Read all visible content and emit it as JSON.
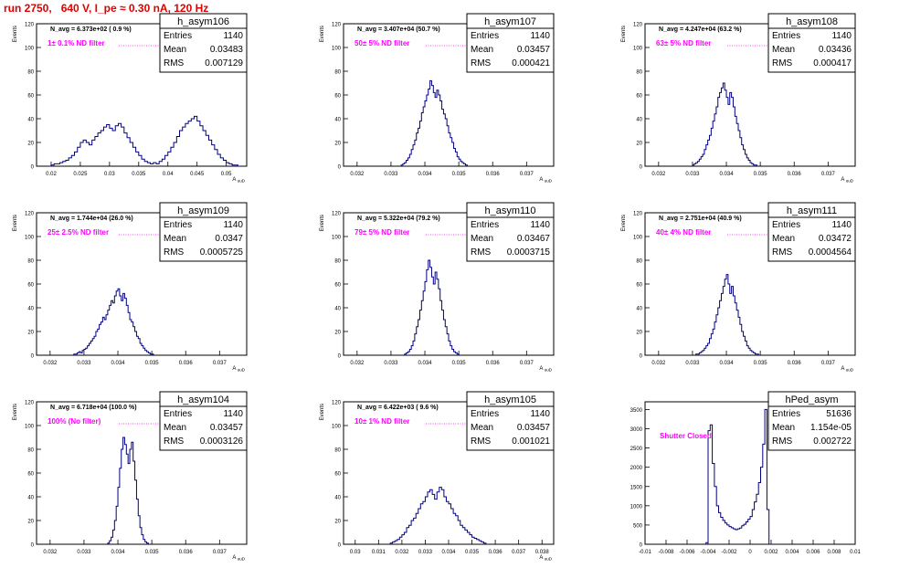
{
  "title": "run 2750,   640 V, I_pe ≈ 0.30 nA, 120 Hz",
  "colors": {
    "title": "#e00000",
    "hist": "#000080",
    "annot": "#ff00ff",
    "frame": "#000000"
  },
  "chart_data": [
    {
      "type": "histogram",
      "name": "h_asym106",
      "ylabel": "Events",
      "xlabel": "A_uuD",
      "navg": "N_avg = 6.373e+02 ( 0.9 %)",
      "filter": "1± 0.1% ND filter",
      "stats": [
        [
          "Entries",
          "1140"
        ],
        [
          "Mean",
          "0.03483"
        ],
        [
          "RMS",
          "0.007129"
        ]
      ],
      "xlim": [
        0.0175,
        0.0535
      ],
      "ylim": [
        0,
        120
      ],
      "yticks": [
        0,
        20,
        40,
        60,
        80,
        100,
        120
      ],
      "xticks": [
        0.02,
        0.025,
        0.03,
        0.035,
        0.04,
        0.045,
        0.05
      ],
      "xticklabels": [
        "0.02",
        "0.025",
        "0.03",
        "0.035",
        "0.04",
        "0.045",
        "0.05"
      ],
      "bins": {
        "x0": 0.0195,
        "w": 0.0005,
        "counts": [
          0,
          1,
          2,
          2,
          3,
          4,
          5,
          7,
          9,
          12,
          16,
          20,
          22,
          20,
          18,
          22,
          25,
          28,
          30,
          33,
          35,
          32,
          30,
          34,
          36,
          33,
          28,
          24,
          20,
          16,
          12,
          9,
          6,
          4,
          3,
          2,
          3,
          2,
          4,
          6,
          9,
          12,
          16,
          20,
          25,
          30,
          33,
          36,
          38,
          40,
          42,
          38,
          34,
          30,
          26,
          22,
          18,
          14,
          10,
          7,
          5,
          3,
          2,
          1,
          1,
          0
        ]
      }
    },
    {
      "type": "histogram",
      "name": "h_asym107",
      "ylabel": "Events",
      "xlabel": "A_uuD",
      "navg": "N_avg = 3.407e+04 (50.7 %)",
      "filter": "50± 5% ND filter",
      "stats": [
        [
          "Entries",
          "1140"
        ],
        [
          "Mean",
          "0.03457"
        ],
        [
          "RMS",
          "0.000421"
        ]
      ],
      "xlim": [
        0.0316,
        0.0378
      ],
      "ylim": [
        0,
        120
      ],
      "yticks": [
        0,
        20,
        40,
        60,
        80,
        100,
        120
      ],
      "xticks": [
        0.032,
        0.033,
        0.034,
        0.035,
        0.036,
        0.037
      ],
      "xticklabels": [
        "0.032",
        "0.033",
        "0.034",
        "0.035",
        "0.036",
        "0.037"
      ],
      "bins": {
        "x0": 0.0333,
        "w": 5e-05,
        "counts": [
          1,
          2,
          3,
          5,
          7,
          10,
          14,
          18,
          22,
          28,
          32,
          38,
          45,
          50,
          55,
          60,
          65,
          72,
          68,
          62,
          58,
          64,
          60,
          55,
          48,
          44,
          40,
          34,
          28,
          24,
          20,
          15,
          12,
          8,
          6,
          4,
          3,
          2,
          1
        ]
      }
    },
    {
      "type": "histogram",
      "name": "h_asym108",
      "ylabel": "Events",
      "xlabel": "A_uuD",
      "navg": "N_avg = 4.247e+04 (63.2 %)",
      "filter": "63± 5% ND filter",
      "stats": [
        [
          "Entries",
          "1140"
        ],
        [
          "Mean",
          "0.03436"
        ],
        [
          "RMS",
          "0.000417"
        ]
      ],
      "xlim": [
        0.0316,
        0.0378
      ],
      "ylim": [
        0,
        120
      ],
      "yticks": [
        0,
        20,
        40,
        60,
        80,
        100,
        120
      ],
      "xticks": [
        0.032,
        0.033,
        0.034,
        0.035,
        0.036,
        0.037
      ],
      "xticklabels": [
        "0.032",
        "0.033",
        "0.034",
        "0.035",
        "0.036",
        "0.037"
      ],
      "bins": {
        "x0": 0.033,
        "w": 5e-05,
        "counts": [
          1,
          2,
          3,
          4,
          6,
          8,
          10,
          14,
          18,
          22,
          26,
          32,
          38,
          44,
          50,
          58,
          62,
          66,
          70,
          64,
          58,
          52,
          62,
          58,
          50,
          42,
          36,
          30,
          24,
          18,
          14,
          10,
          7,
          5,
          3,
          2,
          1,
          1
        ]
      }
    },
    {
      "type": "histogram",
      "name": "h_asym109",
      "ylabel": "Events",
      "xlabel": "A_uuD",
      "navg": "N_avg = 1.744e+04 (26.0 %)",
      "filter": "25± 2.5% ND filter",
      "stats": [
        [
          "Entries",
          "1140"
        ],
        [
          "Mean",
          "0.0347"
        ],
        [
          "RMS",
          "0.0005725"
        ]
      ],
      "xlim": [
        0.0316,
        0.0378
      ],
      "ylim": [
        0,
        120
      ],
      "yticks": [
        0,
        20,
        40,
        60,
        80,
        100,
        120
      ],
      "xticks": [
        0.032,
        0.033,
        0.034,
        0.035,
        0.036,
        0.037
      ],
      "xticklabels": [
        "0.032",
        "0.033",
        "0.034",
        "0.035",
        "0.036",
        "0.037"
      ],
      "bins": {
        "x0": 0.0327,
        "w": 5e-05,
        "counts": [
          1,
          1,
          2,
          3,
          2,
          4,
          5,
          6,
          8,
          10,
          12,
          14,
          16,
          20,
          22,
          26,
          28,
          32,
          30,
          34,
          38,
          42,
          46,
          44,
          50,
          54,
          56,
          50,
          46,
          52,
          48,
          42,
          36,
          30,
          28,
          24,
          20,
          16,
          14,
          10,
          8,
          6,
          4,
          3,
          2,
          1,
          1
        ]
      }
    },
    {
      "type": "histogram",
      "name": "h_asym110",
      "ylabel": "Events",
      "xlabel": "A_uuD",
      "navg": "N_avg = 5.322e+04 (79.2 %)",
      "filter": "79± 5% ND filter",
      "stats": [
        [
          "Entries",
          "1140"
        ],
        [
          "Mean",
          "0.03467"
        ],
        [
          "RMS",
          "0.0003715"
        ]
      ],
      "xlim": [
        0.0316,
        0.0378
      ],
      "ylim": [
        0,
        120
      ],
      "yticks": [
        0,
        20,
        40,
        60,
        80,
        100,
        120
      ],
      "xticks": [
        0.032,
        0.033,
        0.034,
        0.035,
        0.036,
        0.037
      ],
      "xticklabels": [
        "0.032",
        "0.033",
        "0.034",
        "0.035",
        "0.036",
        "0.037"
      ],
      "bins": {
        "x0": 0.0334,
        "w": 5e-05,
        "counts": [
          1,
          2,
          3,
          5,
          8,
          12,
          18,
          24,
          30,
          38,
          46,
          54,
          62,
          72,
          80,
          74,
          66,
          60,
          70,
          64,
          56,
          46,
          38,
          30,
          24,
          18,
          12,
          8,
          5,
          3,
          2,
          1
        ]
      }
    },
    {
      "type": "histogram",
      "name": "h_asym111",
      "ylabel": "Events",
      "xlabel": "A_uuD",
      "navg": "N_avg = 2.751e+04 (40.9 %)",
      "filter": "40± 4% ND filter",
      "stats": [
        [
          "Entries",
          "1140"
        ],
        [
          "Mean",
          "0.03472"
        ],
        [
          "RMS",
          "0.0004564"
        ]
      ],
      "xlim": [
        0.0316,
        0.0378
      ],
      "ylim": [
        0,
        120
      ],
      "yticks": [
        0,
        20,
        40,
        60,
        80,
        100,
        120
      ],
      "xticks": [
        0.032,
        0.033,
        0.034,
        0.035,
        0.036,
        0.037
      ],
      "xticklabels": [
        "0.032",
        "0.033",
        "0.034",
        "0.035",
        "0.036",
        "0.037"
      ],
      "bins": {
        "x0": 0.0331,
        "w": 5e-05,
        "counts": [
          1,
          1,
          2,
          3,
          4,
          6,
          8,
          10,
          14,
          18,
          22,
          28,
          34,
          40,
          46,
          52,
          58,
          64,
          68,
          60,
          52,
          58,
          50,
          44,
          38,
          32,
          26,
          20,
          16,
          12,
          8,
          6,
          4,
          3,
          2,
          1,
          1
        ]
      }
    },
    {
      "type": "histogram",
      "name": "h_asym104",
      "ylabel": "Events",
      "xlabel": "A_uuD",
      "navg": "N_avg = 6.718e+04 (100.0 %)",
      "filter": "100% (No filter)",
      "stats": [
        [
          "Entries",
          "1140"
        ],
        [
          "Mean",
          "0.03457"
        ],
        [
          "RMS",
          "0.0003126"
        ]
      ],
      "xlim": [
        0.0316,
        0.0378
      ],
      "ylim": [
        0,
        120
      ],
      "yticks": [
        0,
        20,
        40,
        60,
        80,
        100,
        120
      ],
      "xticks": [
        0.032,
        0.033,
        0.034,
        0.035,
        0.036,
        0.037
      ],
      "xticklabels": [
        "0.032",
        "0.033",
        "0.034",
        "0.035",
        "0.036",
        "0.037"
      ],
      "bins": {
        "x0": 0.0337,
        "w": 5e-05,
        "counts": [
          1,
          3,
          6,
          12,
          20,
          32,
          48,
          64,
          80,
          90,
          84,
          76,
          68,
          80,
          86,
          70,
          54,
          38,
          24,
          14,
          8,
          4,
          2,
          1
        ]
      }
    },
    {
      "type": "histogram",
      "name": "h_asym105",
      "ylabel": "Events",
      "xlabel": "A_uuD",
      "navg": "N_avg = 6.422e+03 ( 9.6 %)",
      "filter": "10± 1% ND filter",
      "stats": [
        [
          "Entries",
          "1140"
        ],
        [
          "Mean",
          "0.03457"
        ],
        [
          "RMS",
          "0.001021"
        ]
      ],
      "xlim": [
        0.0295,
        0.0385
      ],
      "ylim": [
        0,
        120
      ],
      "yticks": [
        0,
        20,
        40,
        60,
        80,
        100,
        120
      ],
      "xticks": [
        0.03,
        0.031,
        0.032,
        0.033,
        0.034,
        0.035,
        0.036,
        0.037,
        0.038
      ],
      "xticklabels": [
        "0.03",
        "0.031",
        "0.032",
        "0.033",
        "0.034",
        "0.035",
        "0.036",
        "0.037",
        "0.038"
      ],
      "bins": {
        "x0": 0.0315,
        "w": 0.0001,
        "counts": [
          1,
          2,
          3,
          4,
          6,
          8,
          10,
          14,
          16,
          20,
          22,
          26,
          30,
          34,
          36,
          40,
          44,
          46,
          42,
          38,
          44,
          48,
          46,
          40,
          36,
          34,
          30,
          26,
          24,
          20,
          16,
          14,
          12,
          10,
          8,
          6,
          5,
          4,
          3,
          2,
          1
        ]
      }
    },
    {
      "type": "histogram",
      "name": "hPed_asym",
      "ylabel": "",
      "xlabel": "",
      "navg": "",
      "filter": "Shutter Closed",
      "stats": [
        [
          "Entries",
          "51636"
        ],
        [
          "Mean",
          "1.154e-05"
        ],
        [
          "RMS",
          "0.002722"
        ]
      ],
      "xlim": [
        -0.01,
        0.01
      ],
      "ylim": [
        0,
        3700
      ],
      "yticks": [
        0,
        500,
        1000,
        1500,
        2000,
        2500,
        3000,
        3500
      ],
      "xticks": [
        -0.01,
        -0.008,
        -0.006,
        -0.004,
        -0.002,
        0,
        0.002,
        0.004,
        0.006,
        0.008,
        0.01
      ],
      "xticklabels": [
        "-0.01",
        "-0.008",
        "-0.006",
        "-0.004",
        "-0.002",
        "0",
        "0.002",
        "0.004",
        "0.006",
        "0.008",
        "0.01"
      ],
      "bins": {
        "x0": -0.0042,
        "w": 0.0002,
        "counts": [
          40,
          2950,
          3100,
          2100,
          1500,
          1000,
          820,
          700,
          620,
          550,
          500,
          460,
          430,
          400,
          380,
          400,
          420,
          480,
          520,
          580,
          650,
          720,
          900,
          1100,
          1300,
          1600,
          2000,
          2600,
          3500,
          900,
          0
        ]
      }
    }
  ]
}
